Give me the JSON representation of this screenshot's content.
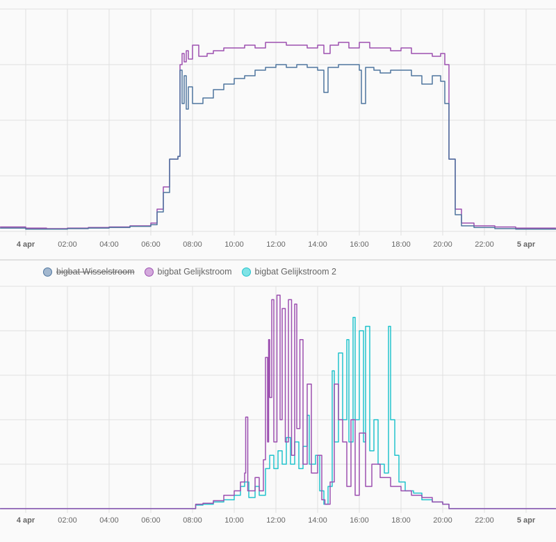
{
  "chart_data": [
    {
      "type": "line",
      "title": "",
      "x_unit": "hours since 4 apr 00:00",
      "xlim": [
        -1.23,
        25.43
      ],
      "ylim": [
        0,
        4
      ],
      "x_ticks": [
        {
          "h": 0,
          "label": "4 apr",
          "bold": true
        },
        {
          "h": 2,
          "label": "02:00"
        },
        {
          "h": 4,
          "label": "04:00"
        },
        {
          "h": 6,
          "label": "06:00"
        },
        {
          "h": 8,
          "label": "08:00"
        },
        {
          "h": 10,
          "label": "10:00"
        },
        {
          "h": 12,
          "label": "12:00"
        },
        {
          "h": 14,
          "label": "14:00"
        },
        {
          "h": 16,
          "label": "16:00"
        },
        {
          "h": 18,
          "label": "18:00"
        },
        {
          "h": 20,
          "label": "20:00"
        },
        {
          "h": 22,
          "label": "22:00"
        },
        {
          "h": 24,
          "label": "5 apr",
          "bold": true
        }
      ],
      "series": [
        {
          "name": "bigbat Gelijkstroom",
          "color": "#9c4fb0",
          "points": [
            [
              -1.23,
              0.08
            ],
            [
              0,
              0.06
            ],
            [
              1,
              0.05
            ],
            [
              2,
              0.06
            ],
            [
              3,
              0.07
            ],
            [
              4,
              0.08
            ],
            [
              5,
              0.1
            ],
            [
              6,
              0.15
            ],
            [
              6.3,
              0.4
            ],
            [
              6.6,
              0.8
            ],
            [
              6.9,
              1.3
            ],
            [
              7.3,
              1.35
            ],
            [
              7.4,
              3.0
            ],
            [
              7.5,
              3.2
            ],
            [
              7.6,
              3.05
            ],
            [
              7.7,
              3.25
            ],
            [
              7.8,
              3.1
            ],
            [
              8.0,
              3.35
            ],
            [
              8.3,
              3.15
            ],
            [
              8.7,
              3.2
            ],
            [
              9,
              3.25
            ],
            [
              9.5,
              3.3
            ],
            [
              10,
              3.3
            ],
            [
              10.5,
              3.35
            ],
            [
              11,
              3.3
            ],
            [
              11.5,
              3.4
            ],
            [
              12,
              3.4
            ],
            [
              12.5,
              3.35
            ],
            [
              13,
              3.35
            ],
            [
              13.5,
              3.3
            ],
            [
              14,
              3.35
            ],
            [
              14.3,
              3.2
            ],
            [
              14.6,
              3.35
            ],
            [
              15,
              3.4
            ],
            [
              15.5,
              3.3
            ],
            [
              16,
              3.4
            ],
            [
              16.5,
              3.3
            ],
            [
              17,
              3.3
            ],
            [
              17.5,
              3.25
            ],
            [
              18,
              3.3
            ],
            [
              18.5,
              3.2
            ],
            [
              19,
              3.2
            ],
            [
              19.5,
              3.15
            ],
            [
              19.9,
              3.2
            ],
            [
              20.1,
              3.0
            ],
            [
              20.3,
              1.3
            ],
            [
              20.6,
              0.4
            ],
            [
              20.9,
              0.15
            ],
            [
              21.5,
              0.1
            ],
            [
              22.5,
              0.08
            ],
            [
              23.5,
              0.06
            ],
            [
              25.43,
              0.06
            ]
          ]
        },
        {
          "name": "bigbat Wisselstroom",
          "color": "#4e759e",
          "points": [
            [
              -1.23,
              0.06
            ],
            [
              0,
              0.04
            ],
            [
              1,
              0.04
            ],
            [
              2,
              0.05
            ],
            [
              3,
              0.06
            ],
            [
              4,
              0.07
            ],
            [
              5,
              0.09
            ],
            [
              6,
              0.12
            ],
            [
              6.3,
              0.35
            ],
            [
              6.6,
              0.7
            ],
            [
              6.9,
              1.3
            ],
            [
              7.3,
              1.35
            ],
            [
              7.4,
              2.9
            ],
            [
              7.5,
              2.3
            ],
            [
              7.6,
              2.8
            ],
            [
              7.7,
              2.2
            ],
            [
              7.8,
              2.6
            ],
            [
              8.0,
              2.3
            ],
            [
              8.5,
              2.4
            ],
            [
              9,
              2.55
            ],
            [
              9.5,
              2.65
            ],
            [
              10,
              2.75
            ],
            [
              10.5,
              2.8
            ],
            [
              11,
              2.9
            ],
            [
              11.5,
              2.95
            ],
            [
              12,
              3.0
            ],
            [
              12.5,
              2.95
            ],
            [
              13,
              3.0
            ],
            [
              13.5,
              2.95
            ],
            [
              14,
              2.9
            ],
            [
              14.3,
              2.5
            ],
            [
              14.5,
              2.95
            ],
            [
              15,
              3.0
            ],
            [
              15.5,
              3.0
            ],
            [
              16,
              2.9
            ],
            [
              16.1,
              2.3
            ],
            [
              16.3,
              2.95
            ],
            [
              16.7,
              2.9
            ],
            [
              17,
              2.85
            ],
            [
              17.5,
              2.9
            ],
            [
              18,
              2.9
            ],
            [
              18.5,
              2.8
            ],
            [
              19,
              2.65
            ],
            [
              19.5,
              2.8
            ],
            [
              19.9,
              2.7
            ],
            [
              20.1,
              2.3
            ],
            [
              20.3,
              1.3
            ],
            [
              20.6,
              0.3
            ],
            [
              20.9,
              0.1
            ],
            [
              21.5,
              0.07
            ],
            [
              22.5,
              0.05
            ],
            [
              23.5,
              0.04
            ],
            [
              25.43,
              0.05
            ]
          ]
        }
      ]
    },
    {
      "type": "line",
      "title": "",
      "x_unit": "hours since 4 apr 00:00",
      "xlim": [
        -1.23,
        25.43
      ],
      "ylim": [
        0,
        5
      ],
      "legend_position": "top",
      "legend": [
        {
          "name": "bigbat Wisselstroom",
          "color": "#4e759e",
          "fill": "#a3b8cf",
          "hidden": true
        },
        {
          "name": "bigbat Gelijkstroom",
          "color": "#9c4fb0",
          "fill": "#d3a9dc",
          "hidden": false
        },
        {
          "name": "bigbat Gelijkstroom 2",
          "color": "#22c3cc",
          "fill": "#7fe3e6",
          "hidden": false
        }
      ],
      "x_ticks": [
        {
          "h": 0,
          "label": "4 apr",
          "bold": true
        },
        {
          "h": 2,
          "label": "02:00"
        },
        {
          "h": 4,
          "label": "04:00"
        },
        {
          "h": 6,
          "label": "06:00"
        },
        {
          "h": 8,
          "label": "08:00"
        },
        {
          "h": 10,
          "label": "10:00"
        },
        {
          "h": 12,
          "label": "12:00"
        },
        {
          "h": 14,
          "label": "14:00"
        },
        {
          "h": 16,
          "label": "16:00"
        },
        {
          "h": 18,
          "label": "18:00"
        },
        {
          "h": 20,
          "label": "20:00"
        },
        {
          "h": 22,
          "label": "22:00"
        },
        {
          "h": 24,
          "label": "5 apr",
          "bold": true
        }
      ],
      "series": [
        {
          "name": "bigbat Gelijkstroom 2",
          "color": "#22c3cc",
          "points": [
            [
              -1.23,
              0
            ],
            [
              8.1,
              0
            ],
            [
              8.15,
              0.08
            ],
            [
              8.5,
              0.1
            ],
            [
              9,
              0.15
            ],
            [
              9.5,
              0.2
            ],
            [
              10,
              0.3
            ],
            [
              10.3,
              0.5
            ],
            [
              10.5,
              0.6
            ],
            [
              10.7,
              0.25
            ],
            [
              11,
              0.5
            ],
            [
              11.2,
              0.3
            ],
            [
              11.5,
              0.9
            ],
            [
              11.7,
              1.2
            ],
            [
              11.9,
              0.9
            ],
            [
              12.1,
              1.3
            ],
            [
              12.3,
              1.0
            ],
            [
              12.5,
              1.6
            ],
            [
              12.7,
              1.0
            ],
            [
              12.9,
              1.5
            ],
            [
              13.1,
              0.9
            ],
            [
              13.3,
              1.4
            ],
            [
              13.5,
              2.1
            ],
            [
              13.6,
              1.0
            ],
            [
              13.9,
              1.2
            ],
            [
              14.1,
              0.4
            ],
            [
              14.3,
              0.1
            ],
            [
              14.5,
              0.5
            ],
            [
              14.7,
              3.1
            ],
            [
              14.8,
              1.5
            ],
            [
              15.0,
              3.5
            ],
            [
              15.2,
              2.0
            ],
            [
              15.4,
              3.8
            ],
            [
              15.5,
              1.5
            ],
            [
              15.7,
              4.3
            ],
            [
              15.8,
              2.0
            ],
            [
              16.0,
              4.0
            ],
            [
              16.2,
              1.5
            ],
            [
              16.3,
              4.1
            ],
            [
              16.5,
              1.3
            ],
            [
              16.7,
              2.0
            ],
            [
              16.9,
              1.0
            ],
            [
              17.2,
              0.8
            ],
            [
              17.4,
              4.1
            ],
            [
              17.5,
              2.0
            ],
            [
              17.7,
              1.2
            ],
            [
              17.9,
              0.6
            ],
            [
              18.2,
              0.4
            ],
            [
              18.6,
              0.35
            ],
            [
              19,
              0.2
            ],
            [
              19.5,
              0.15
            ],
            [
              20,
              0.1
            ],
            [
              20.3,
              0
            ],
            [
              25.43,
              0
            ]
          ]
        },
        {
          "name": "bigbat Gelijkstroom",
          "color": "#9c4fb0",
          "points": [
            [
              -1.23,
              0
            ],
            [
              8.1,
              0
            ],
            [
              8.15,
              0.1
            ],
            [
              8.5,
              0.12
            ],
            [
              9,
              0.18
            ],
            [
              9.5,
              0.3
            ],
            [
              10,
              0.4
            ],
            [
              10.3,
              0.6
            ],
            [
              10.5,
              0.8
            ],
            [
              10.55,
              2.06
            ],
            [
              10.65,
              0.4
            ],
            [
              11,
              0.7
            ],
            [
              11.2,
              0.4
            ],
            [
              11.4,
              1.1
            ],
            [
              11.5,
              3.4
            ],
            [
              11.6,
              1.5
            ],
            [
              11.65,
              3.8
            ],
            [
              11.7,
              2.5
            ],
            [
              11.8,
              4.7
            ],
            [
              11.9,
              1.5
            ],
            [
              12.05,
              4.8
            ],
            [
              12.2,
              2.0
            ],
            [
              12.3,
              4.5
            ],
            [
              12.45,
              1.5
            ],
            [
              12.6,
              4.7
            ],
            [
              12.75,
              1.2
            ],
            [
              12.9,
              4.6
            ],
            [
              13.0,
              1.8
            ],
            [
              13.15,
              3.8
            ],
            [
              13.3,
              1.0
            ],
            [
              13.5,
              2.8
            ],
            [
              13.7,
              0.8
            ],
            [
              14.0,
              1.2
            ],
            [
              14.2,
              0.2
            ],
            [
              14.35,
              0.1
            ],
            [
              14.6,
              0.6
            ],
            [
              14.8,
              2.8
            ],
            [
              15.0,
              2.0
            ],
            [
              15.2,
              1.5
            ],
            [
              15.4,
              0.5
            ],
            [
              15.6,
              2.0
            ],
            [
              15.8,
              0.3
            ],
            [
              16.0,
              1.7
            ],
            [
              16.3,
              0.5
            ],
            [
              16.6,
              1.0
            ],
            [
              17.0,
              0.7
            ],
            [
              17.5,
              0.5
            ],
            [
              18,
              0.4
            ],
            [
              18.5,
              0.3
            ],
            [
              19,
              0.25
            ],
            [
              19.5,
              0.15
            ],
            [
              20,
              0.1
            ],
            [
              20.3,
              0
            ],
            [
              25.43,
              0
            ]
          ]
        }
      ]
    }
  ]
}
